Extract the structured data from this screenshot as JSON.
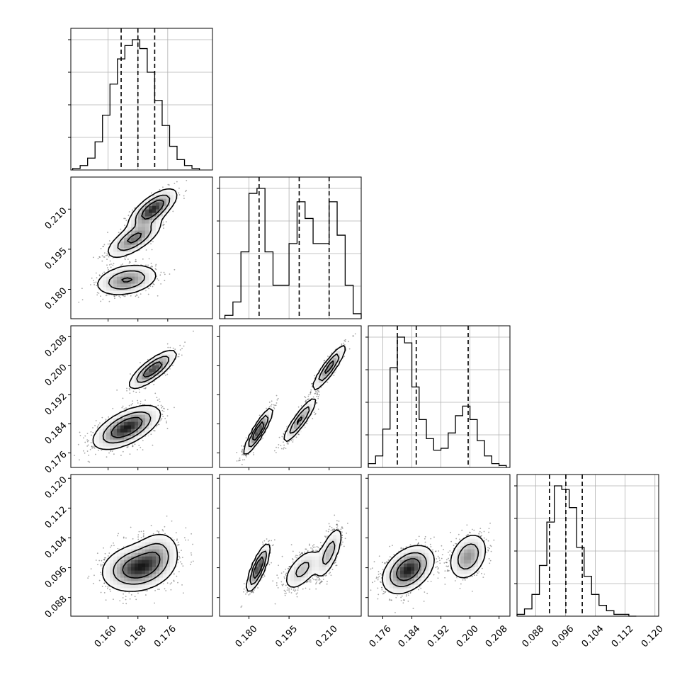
{
  "chart_data": {
    "type": "corner",
    "parameters": 4,
    "grid": true,
    "axes": [
      {
        "range": [
          0.15,
          0.188
        ],
        "ticks": [
          "0.160",
          "0.168",
          "0.176"
        ],
        "tick_values": [
          0.16,
          0.168,
          0.176
        ]
      },
      {
        "range": [
          0.169,
          0.222
        ],
        "ticks": [
          "0.180",
          "0.195",
          "0.210"
        ],
        "tick_values": [
          0.18,
          0.195,
          0.21
        ]
      },
      {
        "range": [
          0.172,
          0.211
        ],
        "ticks": [
          "0.176",
          "0.184",
          "0.192",
          "0.200",
          "0.208"
        ],
        "tick_values": [
          0.176,
          0.184,
          0.192,
          0.2,
          0.208
        ]
      },
      {
        "range": [
          0.083,
          0.121
        ],
        "ticks": [
          "0.088",
          "0.096",
          "0.104",
          "0.112",
          "0.120"
        ],
        "tick_values": [
          0.088,
          0.096,
          0.104,
          0.112,
          0.12
        ]
      }
    ],
    "quantiles": [
      [
        0.1635,
        0.168,
        0.1725
      ],
      [
        0.1838,
        0.1988,
        0.21
      ],
      [
        0.18,
        0.1852,
        0.1995
      ],
      [
        0.0917,
        0.0961,
        0.1005
      ]
    ],
    "histograms": [
      {
        "centers": [
          0.1515,
          0.1535,
          0.1555,
          0.1575,
          0.1595,
          0.1615,
          0.1635,
          0.1655,
          0.1675,
          0.1695,
          0.1715,
          0.1735,
          0.1755,
          0.1775,
          0.1795,
          0.1815,
          0.1835
        ],
        "counts": [
          1,
          3,
          8,
          19,
          37,
          58,
          75,
          84,
          88,
          82,
          66,
          47,
          30,
          16,
          7,
          3,
          1
        ]
      },
      {
        "centers": [
          0.1725,
          0.1755,
          0.1785,
          0.1815,
          0.1845,
          0.1875,
          0.1905,
          0.1935,
          0.1965,
          0.1995,
          0.2025,
          0.2055,
          0.2085,
          0.2115,
          0.2145,
          0.2175,
          0.2205
        ],
        "counts": [
          2,
          10,
          40,
          75,
          78,
          40,
          20,
          20,
          45,
          70,
          60,
          45,
          45,
          70,
          50,
          20,
          3
        ]
      },
      {
        "centers": [
          0.173,
          0.175,
          0.177,
          0.179,
          0.181,
          0.183,
          0.185,
          0.187,
          0.189,
          0.191,
          0.193,
          0.195,
          0.197,
          0.199,
          0.201,
          0.203,
          0.205,
          0.207,
          0.209
        ],
        "counts": [
          2,
          6,
          20,
          52,
          68,
          65,
          42,
          25,
          15,
          9,
          10,
          18,
          27,
          32,
          25,
          14,
          6,
          2,
          1
        ]
      },
      {
        "centers": [
          0.084,
          0.086,
          0.088,
          0.09,
          0.092,
          0.094,
          0.096,
          0.098,
          0.1,
          0.102,
          0.104,
          0.106,
          0.108,
          0.11,
          0.112,
          0.114
        ],
        "counts": [
          1,
          4,
          12,
          28,
          52,
          72,
          70,
          60,
          38,
          22,
          12,
          6,
          3,
          1,
          1,
          0
        ]
      }
    ],
    "pairs": [
      {
        "x": 0,
        "y": 1,
        "components": [
          {
            "mx": 0.172,
            "my": 0.21,
            "sx": 0.003,
            "sy": 0.0035,
            "rho": 0.7,
            "w": 0.36
          },
          {
            "mx": 0.167,
            "my": 0.199,
            "sx": 0.0035,
            "sy": 0.0035,
            "rho": 0.7,
            "w": 0.3
          },
          {
            "mx": 0.165,
            "my": 0.1835,
            "sx": 0.004,
            "sy": 0.0028,
            "rho": 0.3,
            "w": 0.34
          }
        ]
      },
      {
        "x": 0,
        "y": 2,
        "components": [
          {
            "mx": 0.172,
            "my": 0.199,
            "sx": 0.003,
            "sy": 0.0025,
            "rho": 0.8,
            "w": 0.3
          },
          {
            "mx": 0.165,
            "my": 0.183,
            "sx": 0.0042,
            "sy": 0.0028,
            "rho": 0.6,
            "w": 0.7
          }
        ]
      },
      {
        "x": 1,
        "y": 2,
        "components": [
          {
            "mx": 0.21,
            "my": 0.1995,
            "sx": 0.003,
            "sy": 0.003,
            "rho": 0.9,
            "w": 0.33
          },
          {
            "mx": 0.199,
            "my": 0.185,
            "sx": 0.003,
            "sy": 0.003,
            "rho": 0.9,
            "w": 0.3
          },
          {
            "mx": 0.1835,
            "my": 0.182,
            "sx": 0.0025,
            "sy": 0.003,
            "rho": 0.9,
            "w": 0.37
          }
        ]
      },
      {
        "x": 0,
        "y": 3,
        "components": [
          {
            "mx": 0.168,
            "my": 0.096,
            "sx": 0.0045,
            "sy": 0.003,
            "rho": 0.2,
            "w": 0.8
          },
          {
            "mx": 0.173,
            "my": 0.1,
            "sx": 0.003,
            "sy": 0.003,
            "rho": 0.2,
            "w": 0.2
          }
        ]
      },
      {
        "x": 1,
        "y": 3,
        "components": [
          {
            "mx": 0.1835,
            "my": 0.096,
            "sx": 0.002,
            "sy": 0.003,
            "rho": 0.8,
            "w": 0.37
          },
          {
            "mx": 0.2,
            "my": 0.0955,
            "sx": 0.0035,
            "sy": 0.0028,
            "rho": 0.6,
            "w": 0.33
          },
          {
            "mx": 0.21,
            "my": 0.1,
            "sx": 0.0025,
            "sy": 0.0035,
            "rho": 0.7,
            "w": 0.3
          }
        ]
      },
      {
        "x": 2,
        "y": 3,
        "components": [
          {
            "mx": 0.183,
            "my": 0.0955,
            "sx": 0.0033,
            "sy": 0.003,
            "rho": 0.4,
            "w": 0.68
          },
          {
            "mx": 0.1995,
            "my": 0.099,
            "sx": 0.0025,
            "sy": 0.003,
            "rho": 0.3,
            "w": 0.32
          }
        ]
      }
    ]
  }
}
